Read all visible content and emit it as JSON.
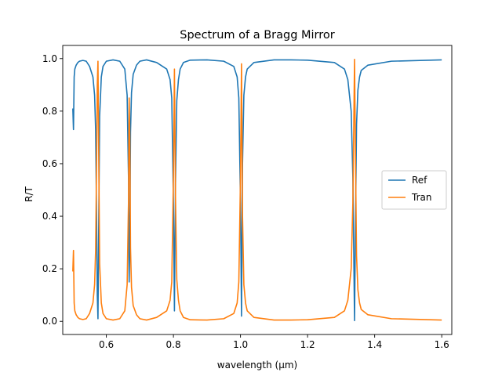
{
  "chart_data": {
    "type": "line",
    "title": "Spectrum of a Bragg Mirror",
    "xlabel": "wavelength (μm)",
    "ylabel": "R/T",
    "xlim": [
      0.47,
      1.63
    ],
    "ylim": [
      -0.05,
      1.05
    ],
    "xticks": [
      0.6,
      0.8,
      1.0,
      1.2,
      1.4,
      1.6
    ],
    "xtick_labels": [
      "0.6",
      "0.8",
      "1.0",
      "1.2",
      "1.4",
      "1.6"
    ],
    "yticks": [
      0.0,
      0.2,
      0.4,
      0.6,
      0.8,
      1.0
    ],
    "ytick_labels": [
      "0.0",
      "0.2",
      "0.4",
      "0.6",
      "0.8",
      "1.0"
    ],
    "grid": false,
    "legend": "center-right",
    "series": [
      {
        "name": "Ref",
        "color": "#1f77b4",
        "x": [
          0.5,
          0.502,
          0.504,
          0.506,
          0.51,
          0.515,
          0.52,
          0.53,
          0.54,
          0.55,
          0.56,
          0.565,
          0.568,
          0.571,
          0.573,
          0.575,
          0.577,
          0.58,
          0.585,
          0.59,
          0.6,
          0.62,
          0.64,
          0.655,
          0.662,
          0.666,
          0.668,
          0.67,
          0.672,
          0.675,
          0.68,
          0.69,
          0.7,
          0.72,
          0.75,
          0.78,
          0.79,
          0.795,
          0.8,
          0.803,
          0.806,
          0.81,
          0.815,
          0.82,
          0.83,
          0.85,
          0.9,
          0.95,
          0.98,
          0.99,
          0.995,
          1.0,
          1.003,
          1.006,
          1.01,
          1.015,
          1.02,
          1.04,
          1.1,
          1.15,
          1.2,
          1.28,
          1.31,
          1.32,
          1.33,
          1.335,
          1.34,
          1.343,
          1.346,
          1.35,
          1.355,
          1.36,
          1.38,
          1.45,
          1.6
        ],
        "y": [
          0.81,
          0.73,
          0.93,
          0.96,
          0.975,
          0.985,
          0.99,
          0.993,
          0.99,
          0.97,
          0.93,
          0.86,
          0.73,
          0.38,
          0.1,
          0.01,
          0.32,
          0.78,
          0.93,
          0.97,
          0.99,
          0.995,
          0.99,
          0.96,
          0.86,
          0.55,
          0.15,
          0.3,
          0.72,
          0.87,
          0.94,
          0.975,
          0.99,
          0.995,
          0.985,
          0.96,
          0.92,
          0.85,
          0.45,
          0.04,
          0.52,
          0.84,
          0.92,
          0.96,
          0.985,
          0.994,
          0.995,
          0.99,
          0.97,
          0.93,
          0.85,
          0.45,
          0.02,
          0.6,
          0.86,
          0.93,
          0.96,
          0.985,
          0.995,
          0.995,
          0.994,
          0.985,
          0.96,
          0.92,
          0.8,
          0.55,
          0.003,
          0.4,
          0.75,
          0.88,
          0.93,
          0.955,
          0.975,
          0.99,
          0.995
        ]
      },
      {
        "name": "Tran",
        "color": "#ff7f0e",
        "x": [
          0.5,
          0.502,
          0.504,
          0.506,
          0.51,
          0.515,
          0.52,
          0.53,
          0.54,
          0.55,
          0.56,
          0.565,
          0.568,
          0.571,
          0.573,
          0.575,
          0.577,
          0.58,
          0.585,
          0.59,
          0.6,
          0.62,
          0.64,
          0.655,
          0.662,
          0.666,
          0.668,
          0.67,
          0.672,
          0.675,
          0.68,
          0.69,
          0.7,
          0.72,
          0.75,
          0.78,
          0.79,
          0.795,
          0.8,
          0.803,
          0.806,
          0.81,
          0.815,
          0.82,
          0.83,
          0.85,
          0.9,
          0.95,
          0.98,
          0.99,
          0.995,
          1.0,
          1.003,
          1.006,
          1.01,
          1.015,
          1.02,
          1.04,
          1.1,
          1.15,
          1.2,
          1.28,
          1.31,
          1.32,
          1.33,
          1.335,
          1.34,
          1.343,
          1.346,
          1.35,
          1.355,
          1.36,
          1.38,
          1.45,
          1.6
        ],
        "y": [
          0.19,
          0.27,
          0.07,
          0.04,
          0.025,
          0.015,
          0.01,
          0.007,
          0.01,
          0.03,
          0.07,
          0.14,
          0.27,
          0.62,
          0.9,
          0.99,
          0.68,
          0.22,
          0.07,
          0.03,
          0.01,
          0.005,
          0.01,
          0.04,
          0.14,
          0.45,
          0.85,
          0.7,
          0.28,
          0.13,
          0.06,
          0.025,
          0.01,
          0.005,
          0.015,
          0.04,
          0.08,
          0.15,
          0.55,
          0.96,
          0.48,
          0.16,
          0.08,
          0.04,
          0.015,
          0.006,
          0.005,
          0.01,
          0.03,
          0.07,
          0.15,
          0.55,
          0.98,
          0.4,
          0.14,
          0.07,
          0.04,
          0.015,
          0.005,
          0.005,
          0.006,
          0.015,
          0.04,
          0.08,
          0.2,
          0.45,
          0.997,
          0.6,
          0.25,
          0.12,
          0.07,
          0.045,
          0.025,
          0.01,
          0.005
        ]
      }
    ]
  }
}
